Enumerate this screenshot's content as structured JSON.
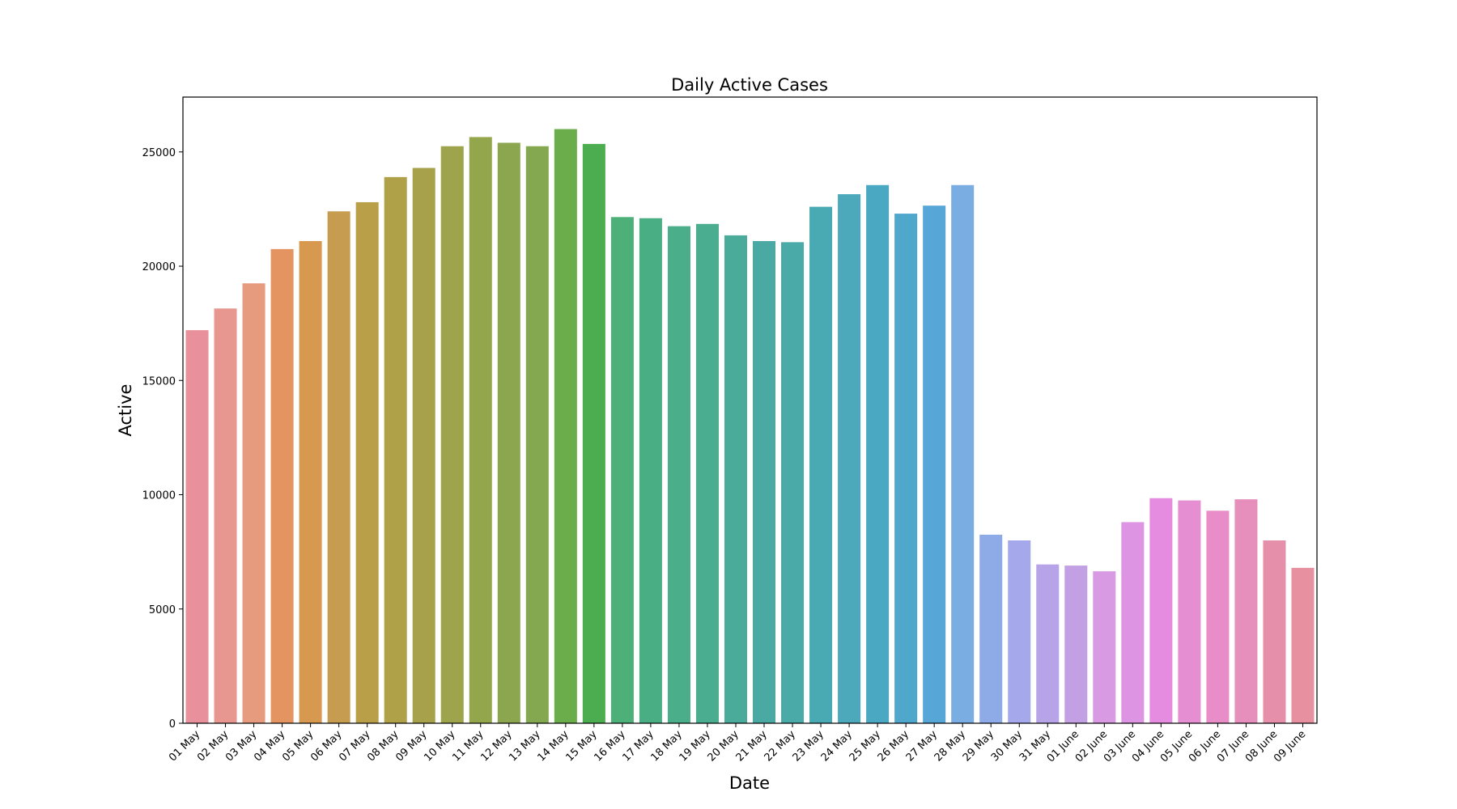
{
  "chart_data": {
    "type": "bar",
    "title": "Daily Active Cases",
    "xlabel": "Date",
    "ylabel": "Active",
    "ylim": [
      0,
      27400
    ],
    "yticks": [
      0,
      5000,
      10000,
      15000,
      20000,
      25000
    ],
    "ytick_labels": [
      "0",
      "5000",
      "10000",
      "15000",
      "20000",
      "25000"
    ],
    "grid": false,
    "categories": [
      "01 May",
      "02 May",
      "03 May",
      "04 May",
      "05 May",
      "06 May",
      "07 May",
      "08 May",
      "09 May",
      "10 May",
      "11 May",
      "12 May",
      "13 May",
      "14 May",
      "15 May",
      "16 May",
      "17 May",
      "18 May",
      "19 May",
      "20 May",
      "21 May",
      "22 May",
      "23 May",
      "24 May",
      "25 May",
      "26 May",
      "27 May",
      "28 May",
      "29 May",
      "30 May",
      "31 May",
      "01 June",
      "02 June",
      "03 June",
      "04 June",
      "05 June",
      "06 June",
      "07 June",
      "08 June",
      "09 June"
    ],
    "values": [
      17200,
      18150,
      19250,
      20750,
      21100,
      22400,
      22800,
      23900,
      24300,
      25250,
      25650,
      25400,
      25250,
      26000,
      25350,
      22150,
      22100,
      21750,
      21850,
      21350,
      21100,
      21050,
      22600,
      23150,
      23550,
      22300,
      22650,
      23550,
      8250,
      8000,
      6950,
      6900,
      6650,
      8800,
      9850,
      9750,
      9300,
      9800,
      8000,
      6800
    ],
    "colors": [
      "#e8909b",
      "#e79790",
      "#e69a7e",
      "#e49461",
      "#d6994f",
      "#c69c50",
      "#b9a048",
      "#aea147",
      "#a6a14a",
      "#9ea44b",
      "#93a64c",
      "#8ba64e",
      "#84a84f",
      "#6cad4b",
      "#4bad4f",
      "#4cb078",
      "#49ae84",
      "#4aae8a",
      "#4aad90",
      "#4aab9a",
      "#4aaaa3",
      "#49aaa8",
      "#4aaab3",
      "#4ba9bb",
      "#4aa8c3",
      "#50a7cc",
      "#57a6d8",
      "#7aade1",
      "#8eaae7",
      "#a6a8ec",
      "#b6a3e8",
      "#c39fe4",
      "#d79ae3",
      "#dd94e2",
      "#e68ce0",
      "#e68ed2",
      "#e88dc7",
      "#e68ebc",
      "#e68fab",
      "#e791a0"
    ]
  }
}
